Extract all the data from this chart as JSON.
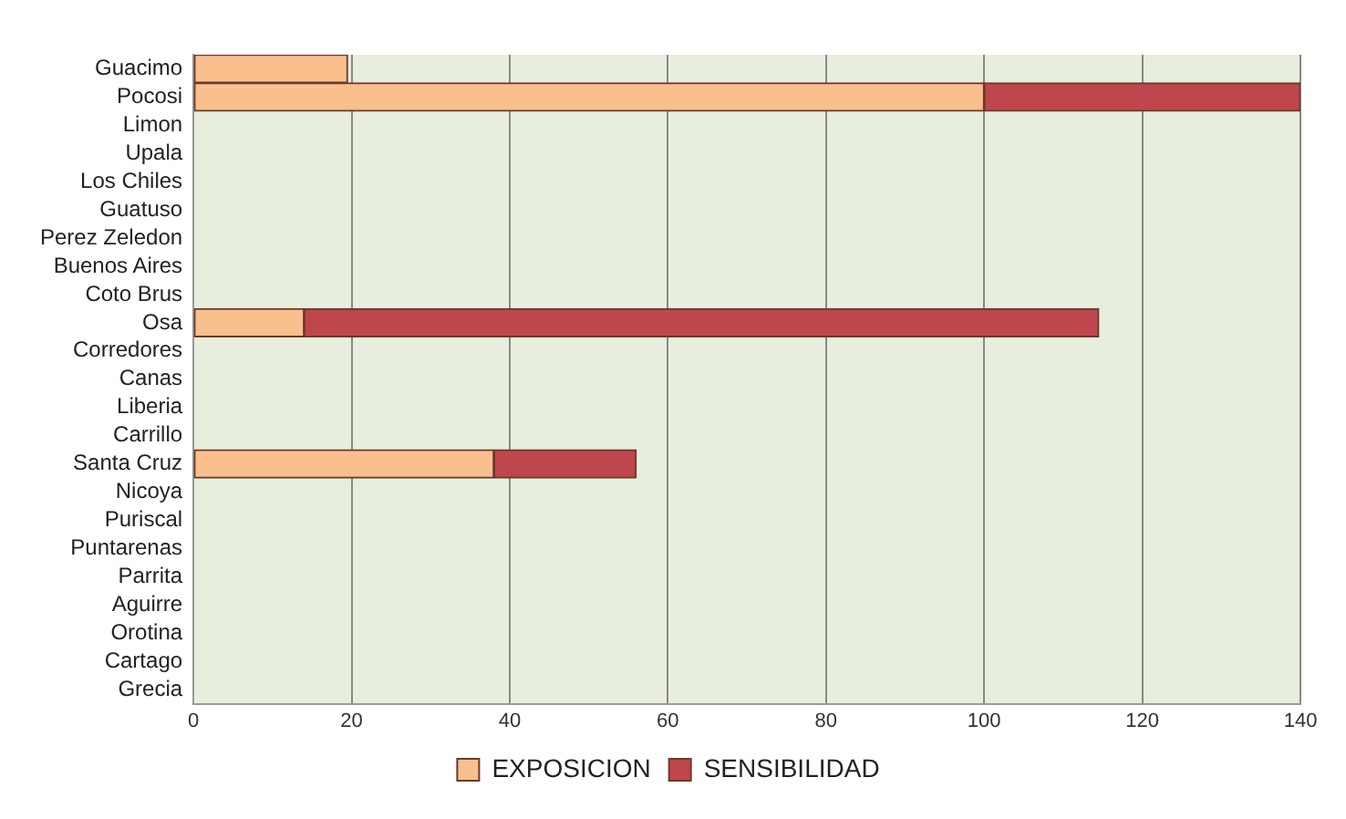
{
  "chart_data": {
    "type": "bar",
    "orientation": "horizontal",
    "stacked": true,
    "categories": [
      "Guacimo",
      "Pocosi",
      "Limon",
      "Upala",
      "Los Chiles",
      "Guatuso",
      "Perez Zeledon",
      "Buenos Aires",
      "Coto Brus",
      "Osa",
      "Corredores",
      "Canas",
      "Liberia",
      "Carrillo",
      "Santa Cruz",
      "Nicoya",
      "Puriscal",
      "Puntarenas",
      "Parrita",
      "Aguirre",
      "Orotina",
      "Cartago",
      "Grecia"
    ],
    "series": [
      {
        "name": "EXPOSICION",
        "color": "#f9c08e",
        "values": [
          19.5,
          100,
          null,
          null,
          null,
          null,
          null,
          null,
          null,
          14,
          null,
          null,
          null,
          null,
          38,
          null,
          null,
          null,
          null,
          null,
          null,
          null,
          null
        ]
      },
      {
        "name": "SENSIBILIDAD",
        "color": "#c0464d",
        "values": [
          null,
          40,
          null,
          null,
          null,
          null,
          null,
          null,
          null,
          100.5,
          null,
          null,
          null,
          null,
          18,
          null,
          null,
          null,
          null,
          null,
          null,
          null,
          null
        ]
      }
    ],
    "xlim": [
      0,
      140
    ],
    "xticks": [
      0,
      20,
      40,
      60,
      80,
      100,
      120,
      140
    ],
    "grid": "x",
    "legend": "bottom"
  }
}
